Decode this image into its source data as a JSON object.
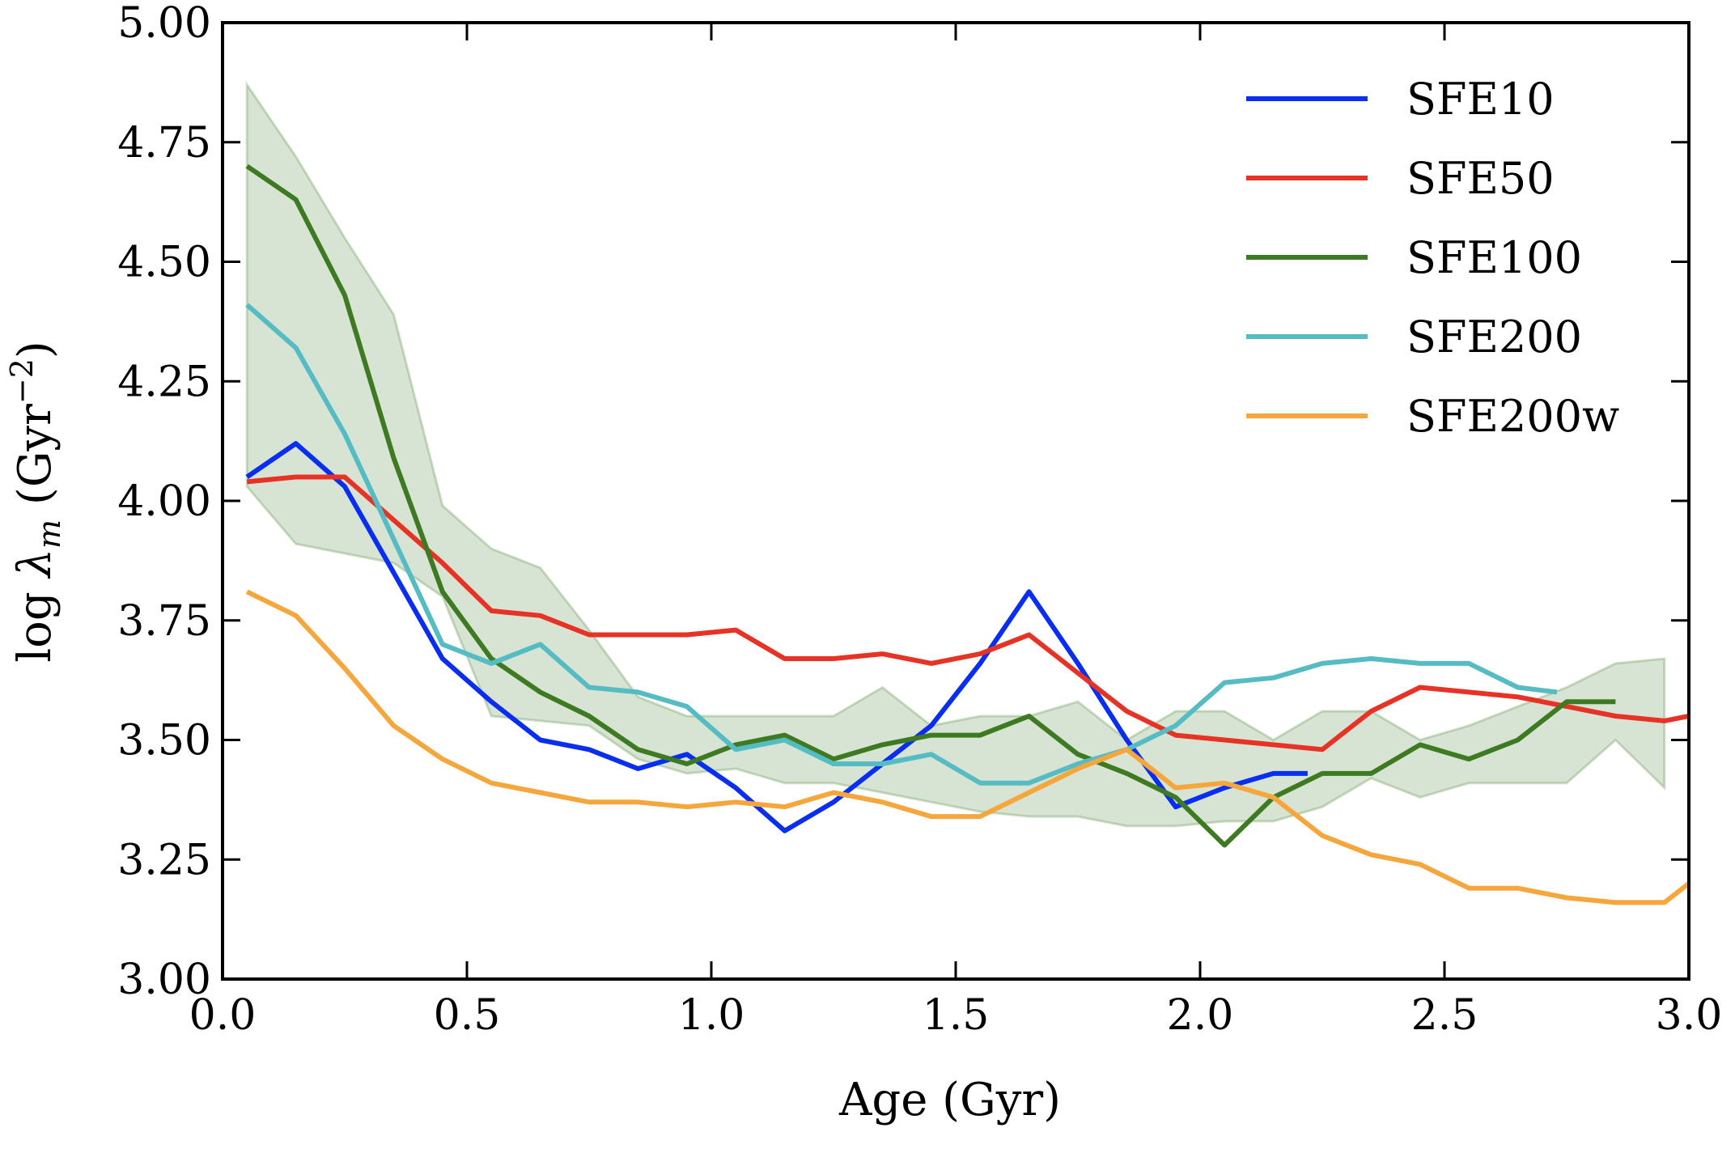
{
  "chart_data": {
    "type": "line",
    "xlabel": "Age (Gyr)",
    "ylabel": "log λ_m (Gyr^-2)",
    "ylabel_parts": {
      "log": "log ",
      "lambda": "λ",
      "sub": "m",
      "unit_open": " (Gyr",
      "sup": "−2",
      "unit_close": ")"
    },
    "xlim": [
      0.0,
      3.0
    ],
    "ylim": [
      3.0,
      5.0
    ],
    "xticks": [
      "0.0",
      "0.5",
      "1.0",
      "1.5",
      "2.0",
      "2.5",
      "3.0"
    ],
    "yticks": [
      "3.00",
      "3.25",
      "3.50",
      "3.75",
      "4.00",
      "4.25",
      "4.50",
      "4.75",
      "5.00"
    ],
    "legend_position": "top-right",
    "grid": false,
    "band": {
      "color": "#3d7a22",
      "x": [
        0.05,
        0.15,
        0.25,
        0.35,
        0.45,
        0.55,
        0.65,
        0.75,
        0.85,
        0.95,
        1.05,
        1.15,
        1.25,
        1.35,
        1.45,
        1.55,
        1.65,
        1.75,
        1.85,
        1.95,
        2.05,
        2.15,
        2.25,
        2.35,
        2.45,
        2.55,
        2.65,
        2.75,
        2.85,
        2.95
      ],
      "upper": [
        4.87,
        4.72,
        4.55,
        4.39,
        3.99,
        3.9,
        3.86,
        3.73,
        3.59,
        3.55,
        3.55,
        3.55,
        3.55,
        3.61,
        3.53,
        3.55,
        3.55,
        3.58,
        3.5,
        3.56,
        3.56,
        3.5,
        3.56,
        3.56,
        3.5,
        3.53,
        3.57,
        3.61,
        3.66,
        3.67
      ],
      "lower": [
        4.03,
        3.91,
        3.89,
        3.87,
        3.8,
        3.55,
        3.54,
        3.53,
        3.46,
        3.43,
        3.44,
        3.41,
        3.41,
        3.39,
        3.37,
        3.35,
        3.34,
        3.34,
        3.32,
        3.32,
        3.33,
        3.33,
        3.36,
        3.42,
        3.38,
        3.41,
        3.41,
        3.41,
        3.5,
        3.4
      ]
    },
    "series": [
      {
        "name": "SFE10",
        "color": "#0a2ef0",
        "x": [
          0.05,
          0.15,
          0.25,
          0.35,
          0.45,
          0.55,
          0.65,
          0.75,
          0.85,
          0.95,
          1.05,
          1.15,
          1.25,
          1.35,
          1.45,
          1.55,
          1.65,
          1.75,
          1.85,
          1.95,
          2.05,
          2.15,
          2.22
        ],
        "y": [
          4.05,
          4.12,
          4.03,
          3.85,
          3.67,
          3.58,
          3.5,
          3.48,
          3.44,
          3.47,
          3.4,
          3.31,
          3.37,
          3.45,
          3.53,
          3.66,
          3.81,
          3.66,
          3.5,
          3.36,
          3.4,
          3.43,
          3.43
        ]
      },
      {
        "name": "SFE50",
        "color": "#e63325",
        "x": [
          0.05,
          0.15,
          0.25,
          0.35,
          0.45,
          0.55,
          0.65,
          0.75,
          0.85,
          0.95,
          1.05,
          1.15,
          1.25,
          1.35,
          1.45,
          1.55,
          1.65,
          1.75,
          1.85,
          1.95,
          2.05,
          2.15,
          2.25,
          2.35,
          2.45,
          2.55,
          2.65,
          2.75,
          2.85,
          2.95,
          3.0
        ],
        "y": [
          4.04,
          4.05,
          4.05,
          3.96,
          3.87,
          3.77,
          3.76,
          3.72,
          3.72,
          3.72,
          3.73,
          3.67,
          3.67,
          3.68,
          3.66,
          3.68,
          3.72,
          3.64,
          3.56,
          3.51,
          3.5,
          3.49,
          3.48,
          3.56,
          3.61,
          3.6,
          3.59,
          3.57,
          3.55,
          3.54,
          3.55
        ]
      },
      {
        "name": "SFE100",
        "color": "#3d7a22",
        "x": [
          0.05,
          0.15,
          0.25,
          0.35,
          0.45,
          0.55,
          0.65,
          0.75,
          0.85,
          0.95,
          1.05,
          1.15,
          1.25,
          1.35,
          1.45,
          1.55,
          1.65,
          1.75,
          1.85,
          1.95,
          2.05,
          2.15,
          2.25,
          2.35,
          2.45,
          2.55,
          2.65,
          2.75,
          2.85
        ],
        "y": [
          4.7,
          4.63,
          4.43,
          4.09,
          3.81,
          3.67,
          3.6,
          3.55,
          3.48,
          3.45,
          3.49,
          3.51,
          3.46,
          3.49,
          3.51,
          3.51,
          3.55,
          3.47,
          3.43,
          3.38,
          3.28,
          3.38,
          3.43,
          3.43,
          3.49,
          3.46,
          3.5,
          3.58,
          3.58
        ]
      },
      {
        "name": "SFE200",
        "color": "#56bcc4",
        "x": [
          0.05,
          0.15,
          0.25,
          0.35,
          0.45,
          0.55,
          0.65,
          0.75,
          0.85,
          0.95,
          1.05,
          1.15,
          1.25,
          1.35,
          1.45,
          1.55,
          1.65,
          1.75,
          1.85,
          1.95,
          2.05,
          2.15,
          2.25,
          2.35,
          2.45,
          2.55,
          2.65,
          2.73
        ],
        "y": [
          4.41,
          4.32,
          4.14,
          3.92,
          3.7,
          3.66,
          3.7,
          3.61,
          3.6,
          3.57,
          3.48,
          3.5,
          3.45,
          3.45,
          3.47,
          3.41,
          3.41,
          3.45,
          3.48,
          3.53,
          3.62,
          3.63,
          3.66,
          3.67,
          3.66,
          3.66,
          3.61,
          3.6
        ]
      },
      {
        "name": "SFE200w",
        "color": "#f5a73d",
        "x": [
          0.05,
          0.15,
          0.25,
          0.35,
          0.45,
          0.55,
          0.65,
          0.75,
          0.85,
          0.95,
          1.05,
          1.15,
          1.25,
          1.35,
          1.45,
          1.55,
          1.65,
          1.75,
          1.85,
          1.95,
          2.05,
          2.15,
          2.25,
          2.35,
          2.45,
          2.55,
          2.65,
          2.75,
          2.85,
          2.95,
          3.0
        ],
        "y": [
          3.81,
          3.76,
          3.65,
          3.53,
          3.46,
          3.41,
          3.39,
          3.37,
          3.37,
          3.36,
          3.37,
          3.36,
          3.39,
          3.37,
          3.34,
          3.34,
          3.39,
          3.44,
          3.48,
          3.4,
          3.41,
          3.38,
          3.3,
          3.26,
          3.24,
          3.19,
          3.19,
          3.17,
          3.16,
          3.16,
          3.2
        ]
      }
    ]
  }
}
